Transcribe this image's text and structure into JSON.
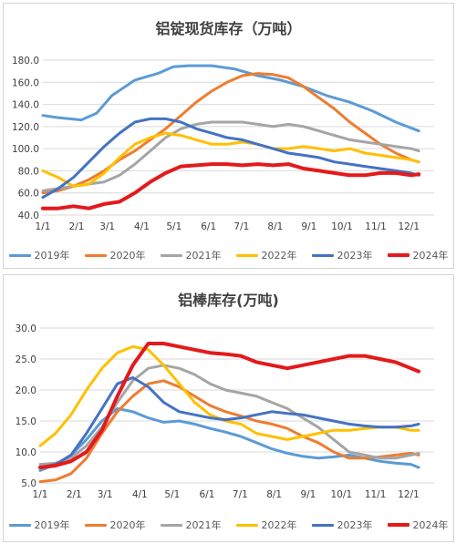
{
  "chart_data": [
    {
      "type": "line",
      "title": "铝锭现货库存（万吨）",
      "ylim": [
        40,
        180
      ],
      "yticks": [
        "40.0",
        "60.0",
        "80.0",
        "100.0",
        "120.0",
        "140.0",
        "160.0",
        "180.0"
      ],
      "xticks": [
        "1/1",
        "2/1",
        "3/1",
        "4/1",
        "5/1",
        "6/1",
        "7/1",
        "8/1",
        "9/1",
        "10/1",
        "11/1",
        "12/1"
      ],
      "grid": true,
      "legend": "bottom",
      "series": [
        {
          "name": "2019年",
          "color": "#5b9bd5",
          "width": 3,
          "x": [
            1,
            3,
            6,
            8,
            10,
            13,
            16,
            18,
            20,
            23,
            26,
            29,
            32,
            35,
            38,
            41,
            44,
            47,
            50
          ],
          "y": [
            130,
            128,
            126,
            132,
            148,
            162,
            168,
            174,
            175,
            175,
            172,
            166,
            162,
            156,
            148,
            142,
            134,
            124,
            116
          ]
        },
        {
          "name": "2020年",
          "color": "#ed7d31",
          "width": 3,
          "x": [
            1,
            3,
            5,
            7,
            9,
            11,
            13,
            15,
            17,
            19,
            21,
            23,
            25,
            27,
            29,
            31,
            33,
            35,
            37,
            39,
            41,
            43,
            45,
            47,
            49,
            50
          ],
          "y": [
            60,
            62,
            66,
            72,
            80,
            90,
            98,
            108,
            118,
            130,
            142,
            152,
            160,
            166,
            168,
            167,
            164,
            156,
            146,
            136,
            124,
            114,
            104,
            96,
            90,
            88
          ]
        },
        {
          "name": "2021年",
          "color": "#a5a5a5",
          "width": 3,
          "x": [
            1,
            3,
            5,
            7,
            9,
            11,
            13,
            15,
            17,
            19,
            21,
            23,
            25,
            27,
            29,
            31,
            33,
            35,
            37,
            39,
            41,
            43,
            45,
            47,
            49,
            50
          ],
          "y": [
            62,
            64,
            66,
            68,
            70,
            76,
            86,
            98,
            110,
            118,
            122,
            124,
            124,
            124,
            122,
            120,
            122,
            120,
            116,
            112,
            108,
            106,
            104,
            102,
            100,
            98
          ]
        },
        {
          "name": "2022年",
          "color": "#ffc000",
          "width": 3,
          "x": [
            1,
            3,
            5,
            7,
            9,
            11,
            13,
            15,
            17,
            19,
            21,
            23,
            25,
            27,
            29,
            31,
            33,
            35,
            37,
            39,
            41,
            43,
            45,
            47,
            49,
            50
          ],
          "y": [
            80,
            74,
            66,
            68,
            78,
            92,
            104,
            110,
            114,
            112,
            108,
            104,
            104,
            106,
            104,
            100,
            100,
            102,
            100,
            98,
            100,
            96,
            94,
            92,
            90,
            88
          ]
        },
        {
          "name": "2023年",
          "color": "#4472c4",
          "width": 3,
          "x": [
            1,
            3,
            5,
            7,
            9,
            11,
            13,
            15,
            17,
            19,
            21,
            23,
            25,
            27,
            29,
            31,
            33,
            35,
            37,
            39,
            41,
            43,
            45,
            47,
            49,
            50
          ],
          "y": [
            56,
            64,
            74,
            88,
            102,
            114,
            124,
            127,
            127,
            124,
            118,
            114,
            110,
            108,
            104,
            100,
            96,
            94,
            92,
            88,
            86,
            84,
            82,
            80,
            78,
            76
          ]
        },
        {
          "name": "2024年",
          "color": "#e31a1c",
          "width": 4,
          "x": [
            1,
            3,
            5,
            7,
            9,
            11,
            13,
            15,
            17,
            19,
            21,
            23,
            25,
            27,
            29,
            31,
            33,
            35,
            37,
            39,
            41,
            43,
            45,
            47,
            49,
            50
          ],
          "y": [
            46,
            46,
            48,
            46,
            50,
            52,
            60,
            70,
            78,
            84,
            85,
            86,
            86,
            85,
            86,
            85,
            86,
            82,
            80,
            78,
            76,
            76,
            78,
            78,
            76,
            77
          ]
        }
      ]
    },
    {
      "type": "line",
      "title": "铝棒库存(万吨)",
      "ylim": [
        5,
        30
      ],
      "yticks": [
        "5.0",
        "10.0",
        "15.0",
        "20.0",
        "25.0",
        "30.0"
      ],
      "xticks": [
        "1/1",
        "2/1",
        "3/1",
        "4/1",
        "5/1",
        "6/1",
        "7/1",
        "8/1",
        "9/1",
        "10/1",
        "11/1",
        "12/1"
      ],
      "grid": true,
      "legend": "bottom",
      "series": [
        {
          "name": "2019年",
          "color": "#5b9bd5",
          "width": 3,
          "x": [
            1,
            3,
            5,
            7,
            9,
            11,
            13,
            15,
            17,
            19,
            21,
            23,
            25,
            27,
            29,
            31,
            33,
            35,
            37,
            39,
            41,
            43,
            45,
            47,
            49,
            50
          ],
          "y": [
            7,
            8,
            9.5,
            12,
            15,
            17,
            16.5,
            15.5,
            14.8,
            15,
            14.5,
            13.8,
            13.2,
            12.5,
            11.5,
            10.5,
            9.8,
            9.3,
            9,
            9.2,
            9.5,
            9,
            8.5,
            8.2,
            8,
            7.5
          ]
        },
        {
          "name": "2020年",
          "color": "#ed7d31",
          "width": 3,
          "x": [
            1,
            3,
            5,
            7,
            9,
            11,
            13,
            15,
            17,
            19,
            21,
            23,
            25,
            27,
            29,
            31,
            33,
            35,
            37,
            39,
            41,
            43,
            45,
            47,
            49,
            50
          ],
          "y": [
            5.2,
            5.5,
            6.5,
            9,
            13,
            16.5,
            19,
            21,
            21.5,
            20.5,
            19,
            17.5,
            16.5,
            15.8,
            15,
            14.5,
            13.8,
            12.5,
            11.5,
            10,
            9,
            9,
            9.2,
            9.5,
            9.8,
            9.5
          ]
        },
        {
          "name": "2021年",
          "color": "#a5a5a5",
          "width": 3,
          "x": [
            1,
            3,
            5,
            7,
            9,
            11,
            13,
            15,
            17,
            19,
            21,
            23,
            25,
            27,
            29,
            31,
            33,
            35,
            37,
            39,
            41,
            43,
            45,
            47,
            49,
            50
          ],
          "y": [
            8,
            8.2,
            9,
            11,
            14,
            18,
            21.5,
            23.5,
            24,
            23.5,
            22.5,
            21,
            20,
            19.5,
            19,
            18,
            17,
            15.5,
            14,
            12,
            10,
            9.5,
            9,
            9,
            9.5,
            9.8
          ]
        },
        {
          "name": "2022年",
          "color": "#ffc000",
          "width": 3,
          "x": [
            1,
            3,
            5,
            7,
            9,
            11,
            13,
            15,
            17,
            19,
            21,
            23,
            25,
            27,
            29,
            31,
            33,
            35,
            37,
            39,
            41,
            43,
            45,
            47,
            49,
            50
          ],
          "y": [
            11,
            13,
            16,
            20,
            23.5,
            26,
            27,
            26.5,
            24,
            21,
            18,
            16,
            15,
            14.5,
            13,
            12.5,
            12,
            12.5,
            13,
            13.5,
            13.5,
            13.8,
            14,
            14,
            13.5,
            13.5
          ]
        },
        {
          "name": "2023年",
          "color": "#4472c4",
          "width": 3,
          "x": [
            1,
            3,
            5,
            7,
            9,
            11,
            13,
            15,
            17,
            19,
            21,
            23,
            25,
            27,
            29,
            31,
            33,
            35,
            37,
            39,
            41,
            43,
            45,
            47,
            49,
            50
          ],
          "y": [
            7.5,
            8,
            9.5,
            13,
            17,
            21,
            22,
            20.5,
            18,
            16.5,
            16,
            15.5,
            15.2,
            15.5,
            16,
            16.5,
            16.2,
            16,
            15.5,
            15,
            14.5,
            14.2,
            14,
            14,
            14.2,
            14.5
          ]
        },
        {
          "name": "2024年",
          "color": "#e31a1c",
          "width": 4,
          "x": [
            1,
            3,
            5,
            7,
            9,
            11,
            13,
            15,
            17,
            19,
            21,
            23,
            25,
            27,
            29,
            31,
            33,
            35,
            37,
            39,
            41,
            43,
            45,
            47,
            49,
            50
          ],
          "y": [
            7.5,
            7.8,
            8.5,
            10,
            13.5,
            19,
            24,
            27.5,
            27.5,
            27,
            26.5,
            26,
            25.8,
            25.5,
            24.5,
            24,
            23.5,
            24,
            24.5,
            25,
            25.5,
            25.5,
            25,
            24.5,
            23.5,
            23
          ]
        }
      ]
    }
  ]
}
